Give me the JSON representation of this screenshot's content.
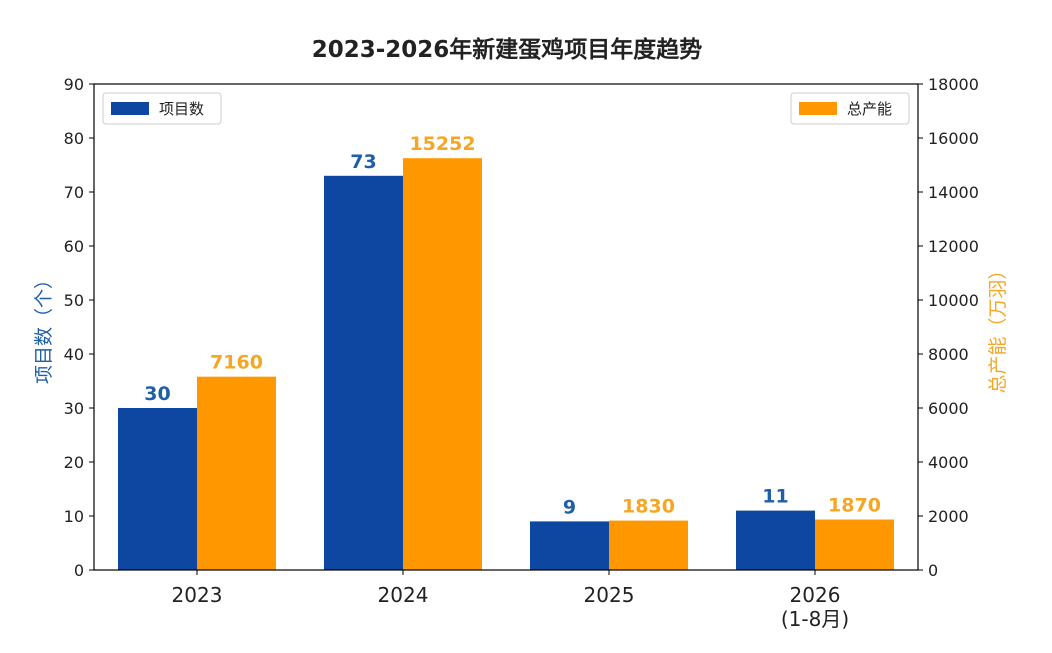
{
  "chart_data": {
    "type": "bar",
    "title": "2023-2026年新建蛋鸡项目年度趋势",
    "categories": [
      [
        "2023"
      ],
      [
        "2024"
      ],
      [
        "2025"
      ],
      [
        "2026",
        "(1-8月)"
      ]
    ],
    "series": [
      {
        "name": "项目数",
        "axis": "left",
        "color": "#0d47a1",
        "values": [
          30,
          73,
          9,
          11
        ]
      },
      {
        "name": "总产能",
        "axis": "right",
        "color": "#ff9800",
        "values": [
          7160,
          15252,
          1830,
          1870
        ]
      }
    ],
    "y_left": {
      "label": "项目数（个）",
      "lim": [
        0,
        90
      ],
      "ticks": [
        0,
        10,
        20,
        30,
        40,
        50,
        60,
        70,
        80,
        90
      ],
      "label_color": "#1f5fa8"
    },
    "y_right": {
      "label": "总产能（万羽）",
      "lim": [
        0,
        18000
      ],
      "ticks": [
        0,
        2000,
        4000,
        6000,
        8000,
        10000,
        12000,
        14000,
        16000,
        18000
      ],
      "label_color": "#f5a623"
    },
    "legend": [
      {
        "series": "项目数",
        "placement": "top-left"
      },
      {
        "series": "总产能",
        "placement": "top-right"
      }
    ],
    "grid": false,
    "data_label_colors": {
      "项目数": "#1f5fa8",
      "总产能": "#f5a623"
    }
  }
}
